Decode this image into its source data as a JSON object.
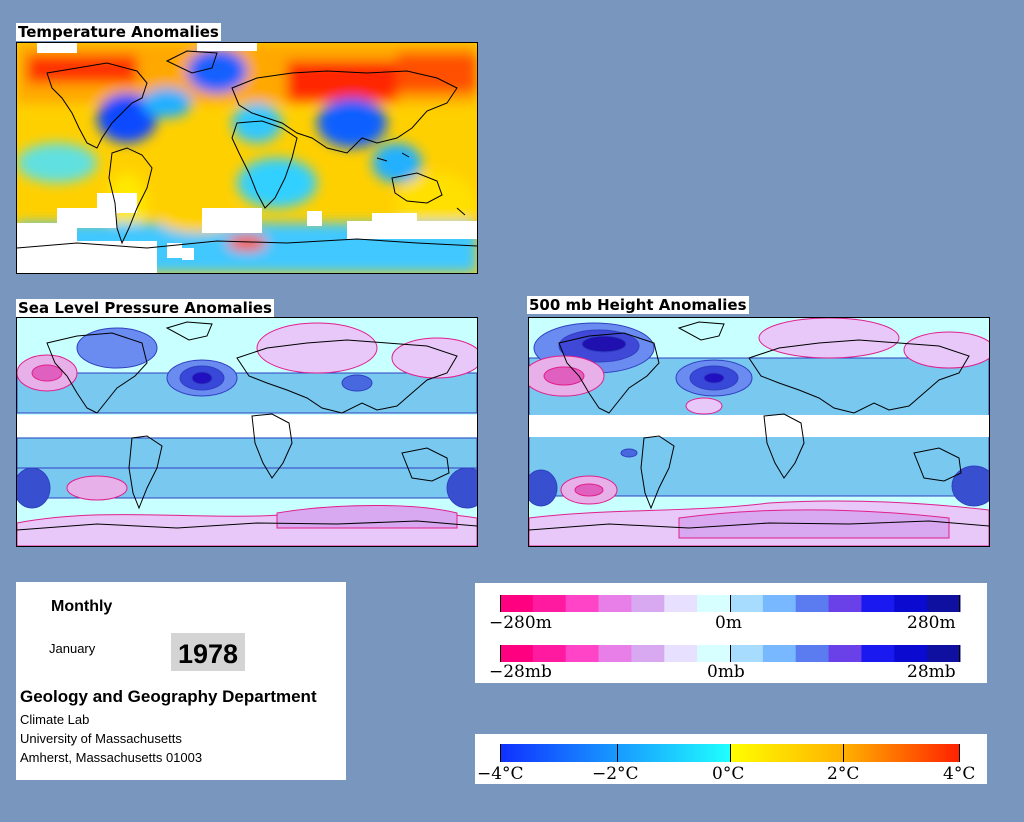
{
  "maps": {
    "temperature": {
      "title": "Temperature Anomalies"
    },
    "slp": {
      "title": "Sea Level Pressure Anomalies"
    },
    "height500": {
      "title": "500 mb Height Anomalies"
    }
  },
  "info": {
    "period": "Monthly",
    "month": "January",
    "year": "1978",
    "department": "Geology and Geography Department",
    "lab": "Climate Lab",
    "university": "University of Massachusetts",
    "address": "Amherst, Massachusetts 01003"
  },
  "scales": {
    "height": {
      "labels": [
        "−280m",
        "0m",
        "280m"
      ]
    },
    "pressure": {
      "labels": [
        "−28mb",
        "0mb",
        "28mb"
      ]
    },
    "temperature": {
      "labels": [
        "−4°C",
        "−2°C",
        "0°C",
        "2°C",
        "4°C"
      ]
    }
  },
  "colors": {
    "background": "#7896be",
    "anomaly_scale": [
      "#ff0080",
      "#ff1aa0",
      "#ff44c8",
      "#e87ee8",
      "#d8a8f0",
      "#e8e0ff",
      "#d8ffff",
      "#a8dcff",
      "#78b8ff",
      "#5a7cf0",
      "#6a40e8",
      "#1a1af0",
      "#0a0ad0",
      "#1010a0"
    ],
    "temperature_scale": [
      "#1030ff",
      "#1890ff",
      "#20d8ff",
      "#60ffe0",
      "#ffff00",
      "#ffd000",
      "#ff9000",
      "#ff3000"
    ]
  }
}
